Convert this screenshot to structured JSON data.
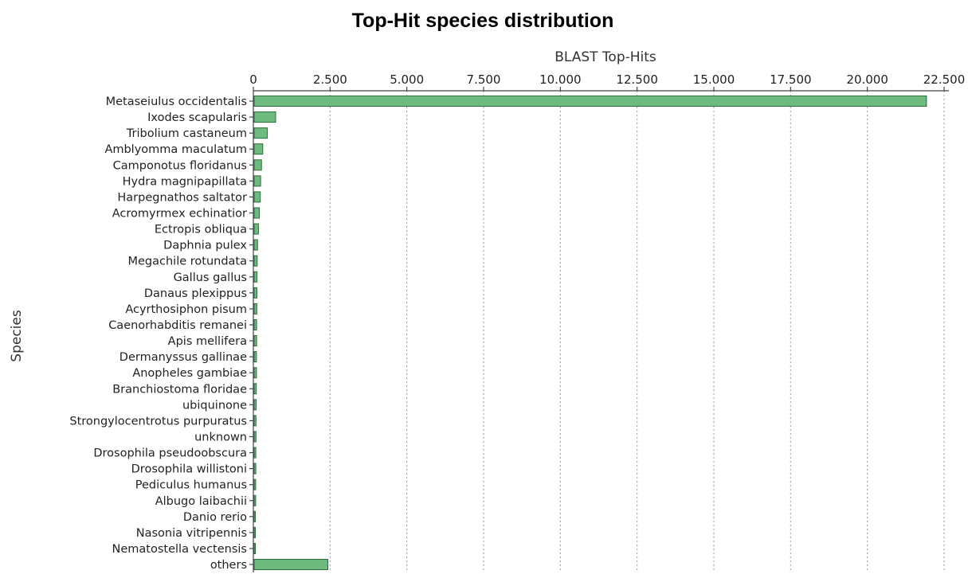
{
  "chart_data": {
    "type": "bar",
    "orientation": "horizontal",
    "title": "Top-Hit species distribution",
    "xlabel": "BLAST Top-Hits",
    "ylabel": "Species",
    "xlim": [
      0,
      22500
    ],
    "x_ticks": [
      0,
      2500,
      5000,
      7500,
      10000,
      12500,
      15000,
      17500,
      20000,
      22500
    ],
    "x_tick_labels": [
      "0",
      "2.500",
      "5.000",
      "7.500",
      "10.000",
      "12.500",
      "15.000",
      "17.500",
      "20.000",
      "22.500"
    ],
    "x_axis_position": "top",
    "grid": "vertical dashed",
    "bar_color": "#6dbb7f",
    "categories": [
      "Metaseiulus occidentalis",
      "Ixodes scapularis",
      "Tribolium castaneum",
      "Amblyomma maculatum",
      "Camponotus floridanus",
      "Hydra magnipapillata",
      "Harpegnathos saltator",
      "Acromyrmex echinatior",
      "Ectropis obliqua",
      "Daphnia pulex",
      "Megachile rotundata",
      "Gallus gallus",
      "Danaus plexippus",
      "Acyrthosiphon pisum",
      "Caenorhabditis remanei",
      "Apis mellifera",
      "Dermanyssus gallinae",
      "Anopheles gambiae",
      "Branchiostoma floridae",
      "ubiquinone",
      "Strongylocentrotus purpuratus",
      "unknown",
      "Drosophila pseudoobscura",
      "Drosophila willistoni",
      "Pediculus humanus",
      "Albugo laibachii",
      "Danio rerio",
      "Nasonia vitripennis",
      "Nematostella vectensis",
      "others"
    ],
    "values": [
      21900,
      700,
      430,
      280,
      240,
      210,
      200,
      170,
      140,
      110,
      100,
      95,
      90,
      85,
      80,
      80,
      75,
      75,
      70,
      65,
      60,
      60,
      55,
      55,
      50,
      50,
      40,
      35,
      30,
      2400
    ]
  }
}
